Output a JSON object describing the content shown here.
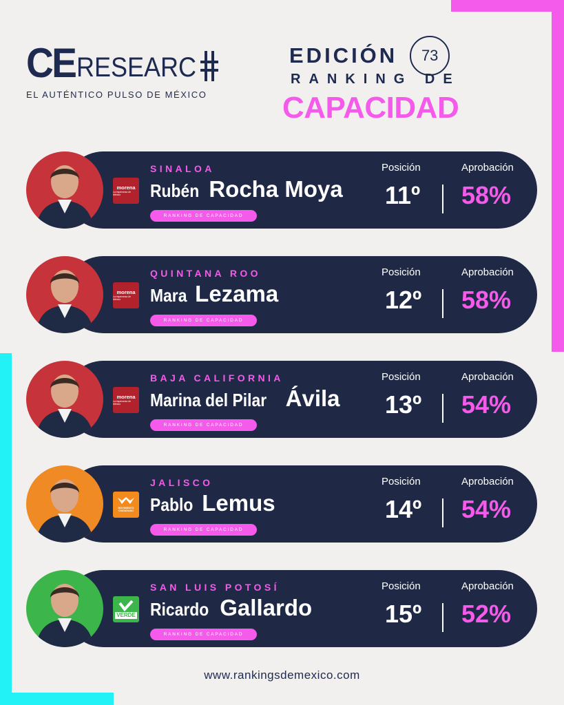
{
  "header": {
    "logo_ce": "CE",
    "logo_research": "RESEARC",
    "tagline": "EL AUTÉNTICO PULSO DE MÉXICO",
    "edition_label": "EDICIÓN",
    "edition_number": "73",
    "ranking_de": "RANKING DE",
    "capacidad": "CAPACIDAD"
  },
  "card_labels": {
    "position": "Posición",
    "approval": "Aprobación",
    "pill": "RANKING DE CAPACIDAD"
  },
  "colors": {
    "navy": "#1f2946",
    "pink": "#f55bea",
    "cyan": "#22f1f6"
  },
  "rankings": [
    {
      "state": "SINALOA",
      "first_name": "Rubén",
      "last_name": "Rocha Moya",
      "position": "11º",
      "approval": "58%",
      "party_logo": "morena",
      "party_sub": "La esperanza de México",
      "party_color": "#b2222c",
      "avatar_bg": "#c6333b"
    },
    {
      "state": "QUINTANA ROO",
      "first_name": "Mara",
      "last_name": "Lezama",
      "position": "12º",
      "approval": "58%",
      "party_logo": "morena",
      "party_sub": "La esperanza de México",
      "party_color": "#b2222c",
      "avatar_bg": "#c6333b"
    },
    {
      "state": "BAJA CALIFORNIA",
      "first_name": "Marina del Pilar",
      "last_name": "Ávila",
      "position": "13º",
      "approval": "54%",
      "party_logo": "morena",
      "party_sub": "La esperanza de México",
      "party_color": "#b2222c",
      "avatar_bg": "#c6333b"
    },
    {
      "state": "JALISCO",
      "first_name": "Pablo",
      "last_name": "Lemus",
      "position": "14º",
      "approval": "54%",
      "party_logo": "MOVIMIENTO CIUDADANO",
      "party_sub": "",
      "party_color": "#f28a1c",
      "avatar_bg": "#f08a24"
    },
    {
      "state": "SAN LUIS POTOSÍ",
      "first_name": "Ricardo",
      "last_name": "Gallardo",
      "position": "15º",
      "approval": "52%",
      "party_logo": "VERDE",
      "party_sub": "",
      "party_color": "#3cb54a",
      "avatar_bg": "#3cb54a"
    }
  ],
  "footer": {
    "url": "www.rankingsdemexico.com"
  }
}
